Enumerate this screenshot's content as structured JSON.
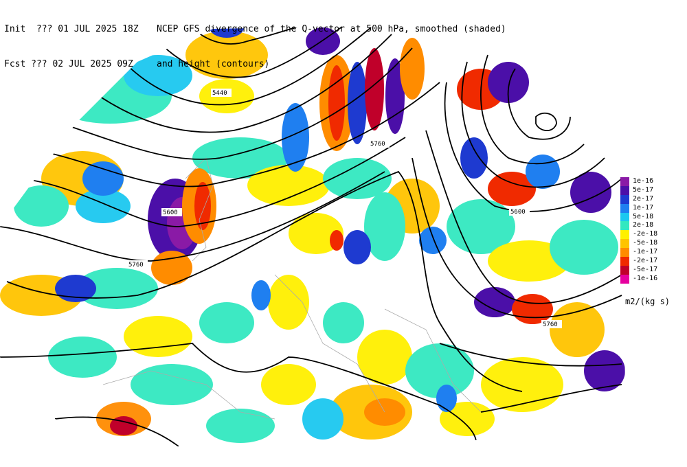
{
  "header": {
    "init_line": "Init  ??? 01 JUL 2025 18Z",
    "fcst_line": "Fcst ??? 02 JUL 2025 09Z",
    "title_line1": "NCEP GFS divergence of the Q-vector at 500 hPa, smoothed (shaded)",
    "title_line2": "and height (contours)"
  },
  "legend": {
    "units": "m2/(kg s)",
    "items": [
      {
        "label": "1e-16",
        "color": "#8a1aa6"
      },
      {
        "label": "5e-17",
        "color": "#4b0fa8"
      },
      {
        "label": "2e-17",
        "color": "#1e3ad0"
      },
      {
        "label": "1e-17",
        "color": "#1f7ff0"
      },
      {
        "label": "5e-18",
        "color": "#1cc8f0"
      },
      {
        "label": "2e-18",
        "color": "#33e8c0"
      },
      {
        "label": "-2e-18",
        "color": "#fff000"
      },
      {
        "label": "-5e-18",
        "color": "#ffc400"
      },
      {
        "label": "-1e-17",
        "color": "#ff8c00"
      },
      {
        "label": "-2e-17",
        "color": "#f02a00"
      },
      {
        "label": "-5e-17",
        "color": "#c0002a"
      },
      {
        "label": "-1e-16",
        "color": "#e6009e"
      }
    ]
  },
  "contour_labels": [
    "5440",
    "5600",
    "5760",
    "5760",
    "5600",
    "5760"
  ]
}
